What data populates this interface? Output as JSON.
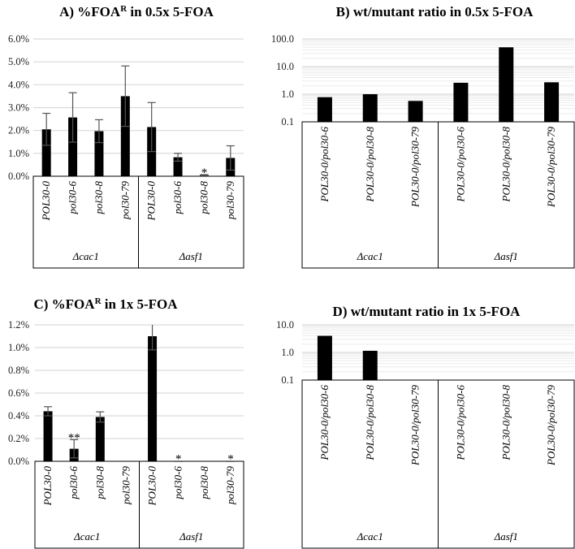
{
  "chart_data": [
    {
      "panel": "A",
      "type": "bar",
      "title": "A) %FOA",
      "title_sup": "R",
      "title_rest": " in 0.5x 5-FOA",
      "scale": "linear",
      "ylim": [
        0,
        6.0
      ],
      "yticks": [
        "0.0%",
        "1.0%",
        "2.0%",
        "3.0%",
        "4.0%",
        "5.0%",
        "6.0%"
      ],
      "ytick_values": [
        0,
        1,
        2,
        3,
        4,
        5,
        6
      ],
      "categories": [
        "POL30-0",
        "pol30-6",
        "pol30-8",
        "pol30-79",
        "POL30-0",
        "pol30-6",
        "pol30-8",
        "pol30-79"
      ],
      "groups": [
        "Δcac1",
        "Δasf1"
      ],
      "values": [
        2.05,
        2.57,
        1.97,
        3.5,
        2.15,
        0.83,
        0.05,
        0.8
      ],
      "errors": [
        0.7,
        1.08,
        0.5,
        1.32,
        1.07,
        0.17,
        0.02,
        0.53
      ],
      "annotations": [
        "",
        "",
        "",
        "",
        "",
        "",
        "*",
        ""
      ],
      "ylabel": "",
      "xlabel": "",
      "grid": true
    },
    {
      "panel": "B",
      "type": "bar",
      "title": "B) wt/mutant ratio in 0.5x 5-FOA",
      "scale": "log",
      "ylim": [
        0.1,
        100.0
      ],
      "yticks": [
        "0.1",
        "1.0",
        "10.0",
        "100.0"
      ],
      "ytick_values": [
        0.1,
        1,
        10,
        100
      ],
      "categories": [
        "POL30-0/pol30-6",
        "POL30-0/pol30-8",
        "POL30-0/pol30-79",
        "POL30-0/pol30-6",
        "POL30-0/pol30-8",
        "POL30-0/pol30-79"
      ],
      "groups": [
        "Δcac1",
        "Δasf1"
      ],
      "values": [
        0.78,
        1.0,
        0.57,
        2.6,
        50,
        2.7
      ],
      "ylabel": "",
      "xlabel": "",
      "grid": true
    },
    {
      "panel": "C",
      "type": "bar",
      "title": "C) %FOA",
      "title_sup": "R",
      "title_rest": " in 1x 5-FOA",
      "scale": "linear",
      "ylim": [
        0,
        1.2
      ],
      "yticks": [
        "0.0%",
        "0.2%",
        "0.4%",
        "0.6%",
        "0.8%",
        "1.0%",
        "1.2%"
      ],
      "ytick_values": [
        0,
        0.2,
        0.4,
        0.6,
        0.8,
        1.0,
        1.2
      ],
      "categories": [
        "POL30-0",
        "pol30-6",
        "pol30-8",
        "pol30-79",
        "POL30-0",
        "pol30-6",
        "pol30-8",
        "pol30-79"
      ],
      "groups": [
        "Δcac1",
        "Δasf1"
      ],
      "values": [
        0.44,
        0.11,
        0.39,
        0,
        1.1,
        0.003,
        0,
        0.003
      ],
      "errors": [
        0.04,
        0.08,
        0.045,
        0,
        0.12,
        0,
        0,
        0
      ],
      "annotations": [
        "",
        "**",
        "",
        "",
        "",
        "*",
        "",
        "*"
      ],
      "ylabel": "",
      "xlabel": "",
      "grid": true
    },
    {
      "panel": "D",
      "type": "bar",
      "title": "D) wt/mutant ratio in 1x 5-FOA",
      "scale": "log",
      "ylim": [
        0.1,
        10.0
      ],
      "yticks": [
        "0.1",
        "1.0",
        "10.0"
      ],
      "ytick_values": [
        0.1,
        1,
        10
      ],
      "categories": [
        "POL30-0/pol30-6",
        "POL30-0/pol30-8",
        "POL30-0/pol30-79",
        "POL30-0/pol30-6",
        "POL30-0/pol30-8",
        "POL30-0/pol30-79"
      ],
      "groups": [
        "Δcac1",
        "Δasf1"
      ],
      "values": [
        4.0,
        1.15,
        null,
        null,
        null,
        null
      ],
      "ylabel": "",
      "xlabel": "",
      "grid": true
    }
  ],
  "colors": {
    "bar": "#000000",
    "grid": "#d9d9d9",
    "error": "#555555"
  }
}
